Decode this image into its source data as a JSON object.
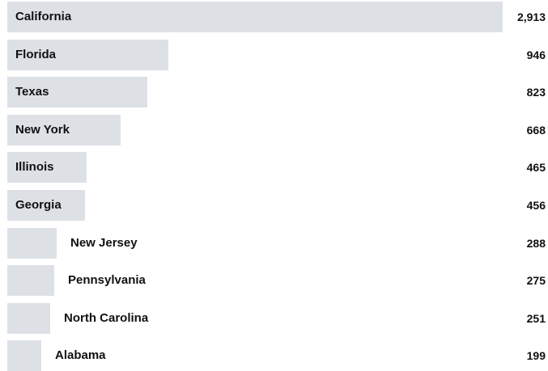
{
  "chart_data": {
    "type": "bar",
    "orientation": "horizontal",
    "title": "",
    "xlabel": "",
    "ylabel": "",
    "categories": [
      "California",
      "Florida",
      "Texas",
      "New York",
      "Illinois",
      "Georgia",
      "New Jersey",
      "Pennsylvania",
      "North Carolina",
      "Alabama"
    ],
    "values": [
      2913,
      946,
      823,
      668,
      465,
      456,
      288,
      275,
      251,
      199
    ],
    "value_labels": [
      "2,913",
      "946",
      "823",
      "668",
      "465",
      "456",
      "288",
      "275",
      "251",
      "199"
    ],
    "bar_color": "#dde1e6",
    "text_color": "#111111",
    "grid": false,
    "legend": "none"
  }
}
